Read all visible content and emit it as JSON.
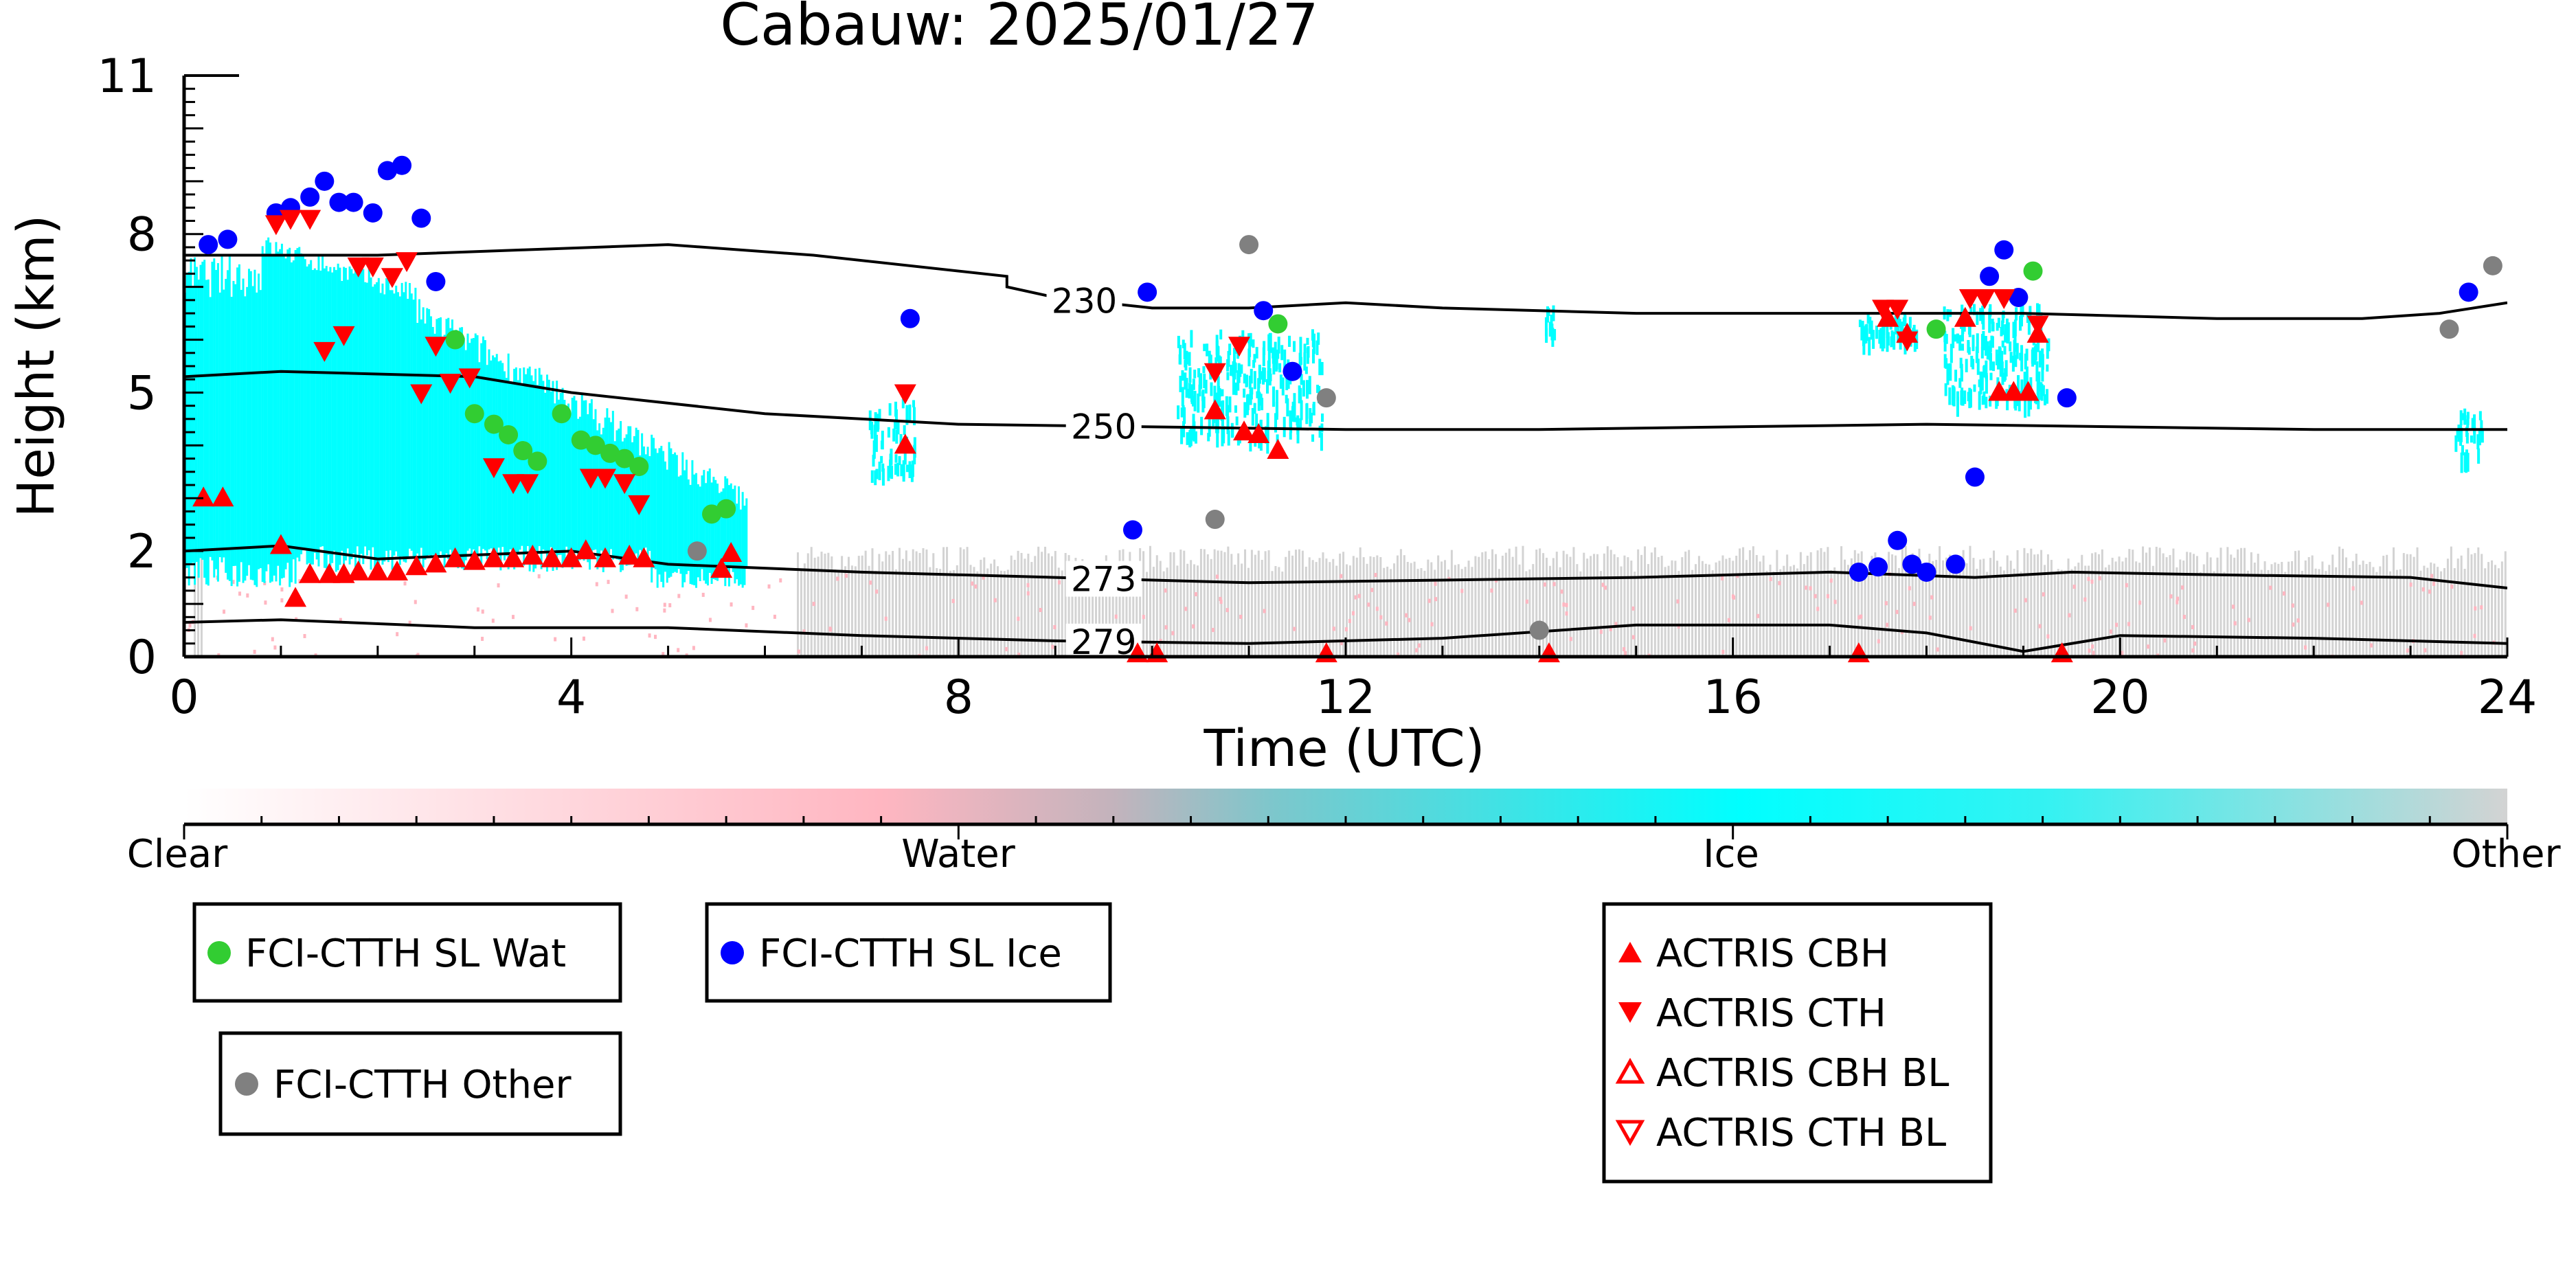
{
  "chart_data": {
    "type": "scatter",
    "title": "Cabauw: 2025/01/27",
    "xlabel": "Time (UTC)",
    "ylabel": "Height (km)",
    "xlim": [
      0,
      24
    ],
    "ylim": [
      0,
      11
    ],
    "x_ticks": [
      "0",
      "4",
      "8",
      "12",
      "16",
      "20",
      "24"
    ],
    "y_ticks": [
      "0",
      "2",
      "5",
      "8",
      "11"
    ],
    "colorbar": {
      "labels": [
        "Clear",
        "Water",
        "Ice",
        "Other"
      ],
      "colors": [
        "#ffffff",
        "#ffb6c1",
        "#00ffff",
        "#d3d3d3"
      ]
    },
    "isotherms": [
      {
        "label": "230",
        "label_x": 9.3,
        "points": [
          [
            0,
            7.6
          ],
          [
            2,
            7.6
          ],
          [
            3.5,
            7.7
          ],
          [
            5,
            7.8
          ],
          [
            6.5,
            7.6
          ],
          [
            8.5,
            7.2
          ],
          [
            8.5,
            7.0
          ],
          [
            9,
            6.8
          ],
          [
            10,
            6.6
          ],
          [
            11,
            6.6
          ],
          [
            12,
            6.7
          ],
          [
            13,
            6.6
          ],
          [
            15,
            6.5
          ],
          [
            17,
            6.5
          ],
          [
            19,
            6.5
          ],
          [
            21,
            6.4
          ],
          [
            22.5,
            6.4
          ],
          [
            23.3,
            6.5
          ],
          [
            24,
            6.7
          ]
        ]
      },
      {
        "label": "250",
        "label_x": 9.5,
        "points": [
          [
            0,
            5.3
          ],
          [
            1,
            5.4
          ],
          [
            3,
            5.3
          ],
          [
            4,
            5.0
          ],
          [
            6,
            4.6
          ],
          [
            8,
            4.4
          ],
          [
            10,
            4.35
          ],
          [
            12,
            4.3
          ],
          [
            14,
            4.3
          ],
          [
            16,
            4.35
          ],
          [
            18,
            4.4
          ],
          [
            20,
            4.35
          ],
          [
            22,
            4.3
          ],
          [
            24,
            4.3
          ]
        ]
      },
      {
        "label": "273",
        "label_x": 9.5,
        "points": [
          [
            0,
            2.0
          ],
          [
            1,
            2.1
          ],
          [
            2,
            1.85
          ],
          [
            4,
            2.0
          ],
          [
            5,
            1.75
          ],
          [
            7,
            1.6
          ],
          [
            9,
            1.5
          ],
          [
            11,
            1.4
          ],
          [
            13,
            1.45
          ],
          [
            15,
            1.5
          ],
          [
            17,
            1.6
          ],
          [
            18.5,
            1.5
          ],
          [
            19.5,
            1.6
          ],
          [
            21,
            1.55
          ],
          [
            23,
            1.5
          ],
          [
            24,
            1.3
          ]
        ]
      },
      {
        "label": "279",
        "label_x": 9.5,
        "points": [
          [
            0,
            0.65
          ],
          [
            1,
            0.7
          ],
          [
            3,
            0.55
          ],
          [
            5,
            0.55
          ],
          [
            7,
            0.4
          ],
          [
            9,
            0.3
          ],
          [
            11,
            0.25
          ],
          [
            13,
            0.35
          ],
          [
            15,
            0.6
          ],
          [
            17,
            0.6
          ],
          [
            18,
            0.45
          ],
          [
            19,
            0.1
          ],
          [
            20,
            0.4
          ],
          [
            22,
            0.35
          ],
          [
            24,
            0.25
          ]
        ]
      }
    ],
    "series": [
      {
        "name": "FCI-CTTH SL Wat",
        "color": "#32cd32",
        "marker": "circle",
        "points": [
          [
            2.8,
            6.0
          ],
          [
            3.0,
            4.6
          ],
          [
            3.2,
            4.4
          ],
          [
            3.35,
            4.2
          ],
          [
            3.5,
            3.9
          ],
          [
            3.65,
            3.7
          ],
          [
            3.9,
            4.6
          ],
          [
            4.1,
            4.1
          ],
          [
            4.25,
            4.0
          ],
          [
            4.4,
            3.85
          ],
          [
            4.55,
            3.75
          ],
          [
            4.7,
            3.6
          ],
          [
            5.45,
            2.7
          ],
          [
            5.6,
            2.8
          ],
          [
            11.3,
            6.3
          ],
          [
            18.1,
            6.2
          ],
          [
            19.1,
            7.3
          ]
        ]
      },
      {
        "name": "FCI-CTTH SL Ice",
        "color": "#0000ff",
        "marker": "circle",
        "points": [
          [
            0.25,
            7.8
          ],
          [
            0.45,
            7.9
          ],
          [
            0.95,
            8.4
          ],
          [
            1.1,
            8.5
          ],
          [
            1.3,
            8.7
          ],
          [
            1.45,
            9.0
          ],
          [
            1.6,
            8.6
          ],
          [
            1.75,
            8.6
          ],
          [
            1.95,
            8.4
          ],
          [
            2.1,
            9.2
          ],
          [
            2.25,
            9.3
          ],
          [
            2.45,
            8.3
          ],
          [
            2.6,
            7.1
          ],
          [
            7.5,
            6.4
          ],
          [
            9.95,
            6.9
          ],
          [
            11.15,
            6.55
          ],
          [
            11.45,
            5.4
          ],
          [
            9.8,
            2.4
          ],
          [
            17.3,
            1.6
          ],
          [
            17.5,
            1.7
          ],
          [
            17.7,
            2.2
          ],
          [
            17.85,
            1.75
          ],
          [
            18.0,
            1.6
          ],
          [
            18.3,
            1.75
          ],
          [
            18.5,
            3.4
          ],
          [
            18.65,
            7.2
          ],
          [
            18.8,
            7.7
          ],
          [
            18.95,
            6.8
          ],
          [
            19.45,
            4.9
          ],
          [
            23.6,
            6.9
          ]
        ]
      },
      {
        "name": "FCI-CTTH Other",
        "color": "#808080",
        "marker": "circle",
        "points": [
          [
            5.3,
            2.0
          ],
          [
            10.65,
            2.6
          ],
          [
            11.0,
            7.8
          ],
          [
            11.8,
            4.9
          ],
          [
            14.0,
            0.5
          ],
          [
            23.4,
            6.2
          ],
          [
            23.85,
            7.4
          ]
        ]
      },
      {
        "name": "ACTRIS CBH",
        "color": "#ff0000",
        "marker": "triangle-up",
        "points": [
          [
            0.2,
            3.0
          ],
          [
            0.4,
            3.0
          ],
          [
            1.0,
            2.1
          ],
          [
            1.15,
            1.1
          ],
          [
            1.3,
            1.55
          ],
          [
            1.5,
            1.55
          ],
          [
            1.65,
            1.55
          ],
          [
            1.8,
            1.6
          ],
          [
            2.0,
            1.6
          ],
          [
            2.2,
            1.6
          ],
          [
            2.4,
            1.7
          ],
          [
            2.6,
            1.75
          ],
          [
            2.8,
            1.85
          ],
          [
            3.0,
            1.8
          ],
          [
            3.2,
            1.85
          ],
          [
            3.4,
            1.85
          ],
          [
            3.6,
            1.9
          ],
          [
            3.8,
            1.85
          ],
          [
            4.0,
            1.85
          ],
          [
            4.15,
            2.0
          ],
          [
            4.35,
            1.85
          ],
          [
            4.6,
            1.9
          ],
          [
            4.75,
            1.85
          ],
          [
            5.55,
            1.65
          ],
          [
            5.65,
            1.95
          ],
          [
            7.45,
            4.0
          ],
          [
            10.65,
            4.65
          ],
          [
            10.95,
            4.25
          ],
          [
            11.1,
            4.2
          ],
          [
            11.3,
            3.9
          ],
          [
            17.6,
            6.4
          ],
          [
            17.8,
            6.1
          ],
          [
            18.4,
            6.4
          ],
          [
            18.75,
            5.0
          ],
          [
            18.9,
            5.0
          ],
          [
            19.05,
            5.0
          ],
          [
            19.15,
            6.1
          ],
          [
            9.85,
            0.05
          ],
          [
            10.05,
            0.05
          ],
          [
            11.8,
            0.05
          ],
          [
            14.1,
            0.05
          ],
          [
            17.3,
            0.05
          ],
          [
            19.4,
            0.05
          ]
        ]
      },
      {
        "name": "ACTRIS CTH",
        "color": "#ff0000",
        "marker": "triangle-down",
        "points": [
          [
            0.95,
            8.2
          ],
          [
            1.1,
            8.3
          ],
          [
            1.3,
            8.3
          ],
          [
            1.45,
            5.8
          ],
          [
            1.65,
            6.1
          ],
          [
            1.8,
            7.4
          ],
          [
            1.95,
            7.4
          ],
          [
            2.15,
            7.2
          ],
          [
            2.3,
            7.5
          ],
          [
            2.45,
            5.0
          ],
          [
            2.6,
            5.9
          ],
          [
            2.75,
            5.2
          ],
          [
            2.95,
            5.3
          ],
          [
            3.2,
            3.6
          ],
          [
            3.4,
            3.3
          ],
          [
            3.55,
            3.3
          ],
          [
            4.2,
            3.4
          ],
          [
            4.35,
            3.4
          ],
          [
            4.55,
            3.3
          ],
          [
            4.7,
            2.9
          ],
          [
            7.45,
            5.0
          ],
          [
            10.65,
            5.4
          ],
          [
            10.9,
            5.9
          ],
          [
            17.55,
            6.6
          ],
          [
            17.7,
            6.6
          ],
          [
            17.8,
            6.0
          ],
          [
            18.45,
            6.8
          ],
          [
            18.6,
            6.8
          ],
          [
            18.8,
            6.8
          ],
          [
            19.15,
            6.3
          ]
        ]
      },
      {
        "name": "ACTRIS CBH BL",
        "color": "#ff0000",
        "marker": "triangle-up-open",
        "points": []
      },
      {
        "name": "ACTRIS CTH BL",
        "color": "#ff0000",
        "marker": "triangle-down-open",
        "points": []
      }
    ]
  }
}
